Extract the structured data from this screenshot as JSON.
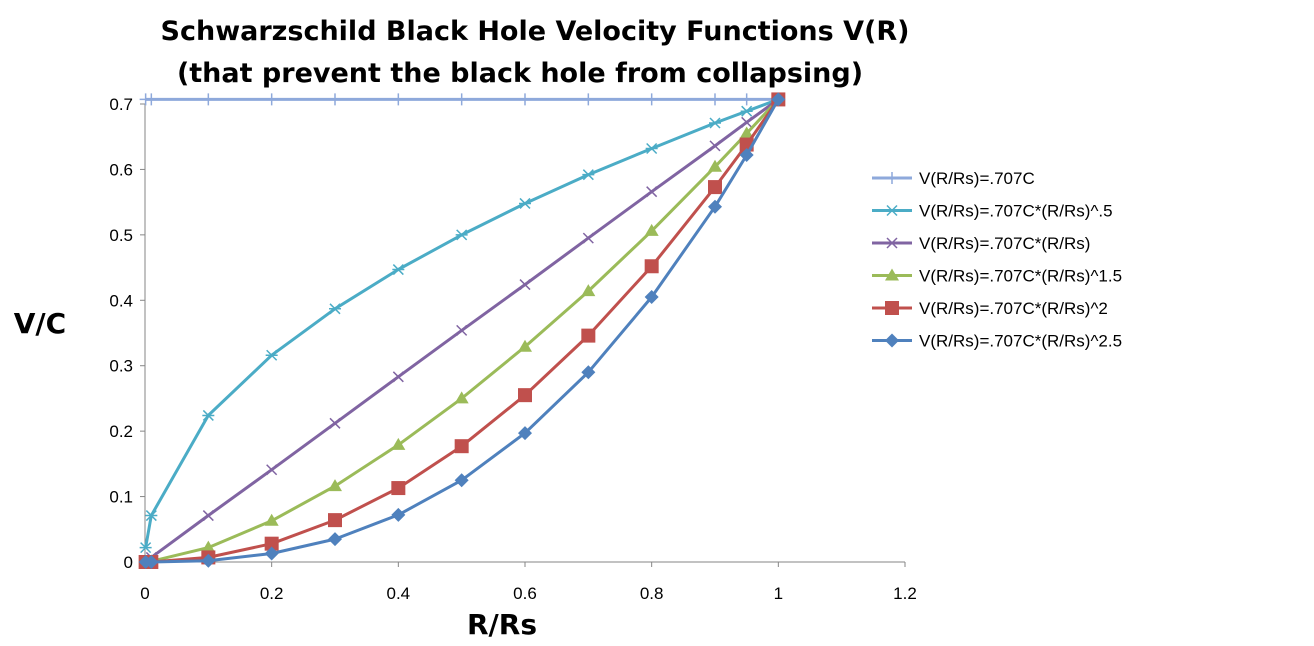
{
  "chart_data": {
    "type": "line",
    "title": "Schwarzschild Black Hole Velocity Functions V(R)",
    "subtitle": "(that prevent the black hole from collapsing)",
    "xlabel": "R/Rs",
    "ylabel": "V/C",
    "xlim": [
      0,
      1.2
    ],
    "ylim": [
      0,
      0.7
    ],
    "xticks": [
      "0",
      "0.2",
      "0.4",
      "0.6",
      "0.8",
      "1",
      "1.2"
    ],
    "yticks": [
      "0",
      "0.1",
      "0.2",
      "0.3",
      "0.4",
      "0.5",
      "0.6",
      "0.7"
    ],
    "grid": false,
    "legend_position": "right",
    "x": [
      0.001,
      0.01,
      0.1,
      0.2,
      0.3,
      0.4,
      0.5,
      0.6,
      0.7,
      0.8,
      0.9,
      0.95,
      1.0
    ],
    "series": [
      {
        "name": "V(R/Rs)=.707C",
        "color": "#8EA9DB",
        "marker": "plus",
        "values": [
          0.707,
          0.707,
          0.707,
          0.707,
          0.707,
          0.707,
          0.707,
          0.707,
          0.707,
          0.707,
          0.707,
          0.707,
          0.707
        ]
      },
      {
        "name": "V(R/Rs)=.707C*(R/Rs)^.5",
        "color": "#4BACC6",
        "marker": "star",
        "values": [
          0.022,
          0.071,
          0.224,
          0.316,
          0.387,
          0.447,
          0.5,
          0.548,
          0.592,
          0.632,
          0.671,
          0.689,
          0.707
        ]
      },
      {
        "name": "V(R/Rs)=.707C*(R/Rs)",
        "color": "#8064A2",
        "marker": "x",
        "values": [
          0.001,
          0.007,
          0.071,
          0.141,
          0.212,
          0.283,
          0.354,
          0.424,
          0.495,
          0.566,
          0.636,
          0.672,
          0.707
        ]
      },
      {
        "name": "V(R/Rs)=.707C*(R/Rs)^1.5",
        "color": "#9BBB59",
        "marker": "triangle",
        "values": [
          0.0,
          0.001,
          0.022,
          0.063,
          0.116,
          0.179,
          0.25,
          0.329,
          0.414,
          0.506,
          0.604,
          0.655,
          0.707
        ]
      },
      {
        "name": "V(R/Rs)=.707C*(R/Rs)^2",
        "color": "#C0504D",
        "marker": "square",
        "values": [
          0.0,
          0.0,
          0.007,
          0.028,
          0.064,
          0.113,
          0.177,
          0.255,
          0.346,
          0.452,
          0.573,
          0.638,
          0.707
        ]
      },
      {
        "name": "V(R/Rs)=.707C*(R/Rs)^2.5",
        "color": "#4F81BD",
        "marker": "diamond",
        "values": [
          0.0,
          0.0,
          0.002,
          0.013,
          0.035,
          0.072,
          0.125,
          0.197,
          0.29,
          0.405,
          0.543,
          0.622,
          0.707
        ]
      }
    ]
  }
}
